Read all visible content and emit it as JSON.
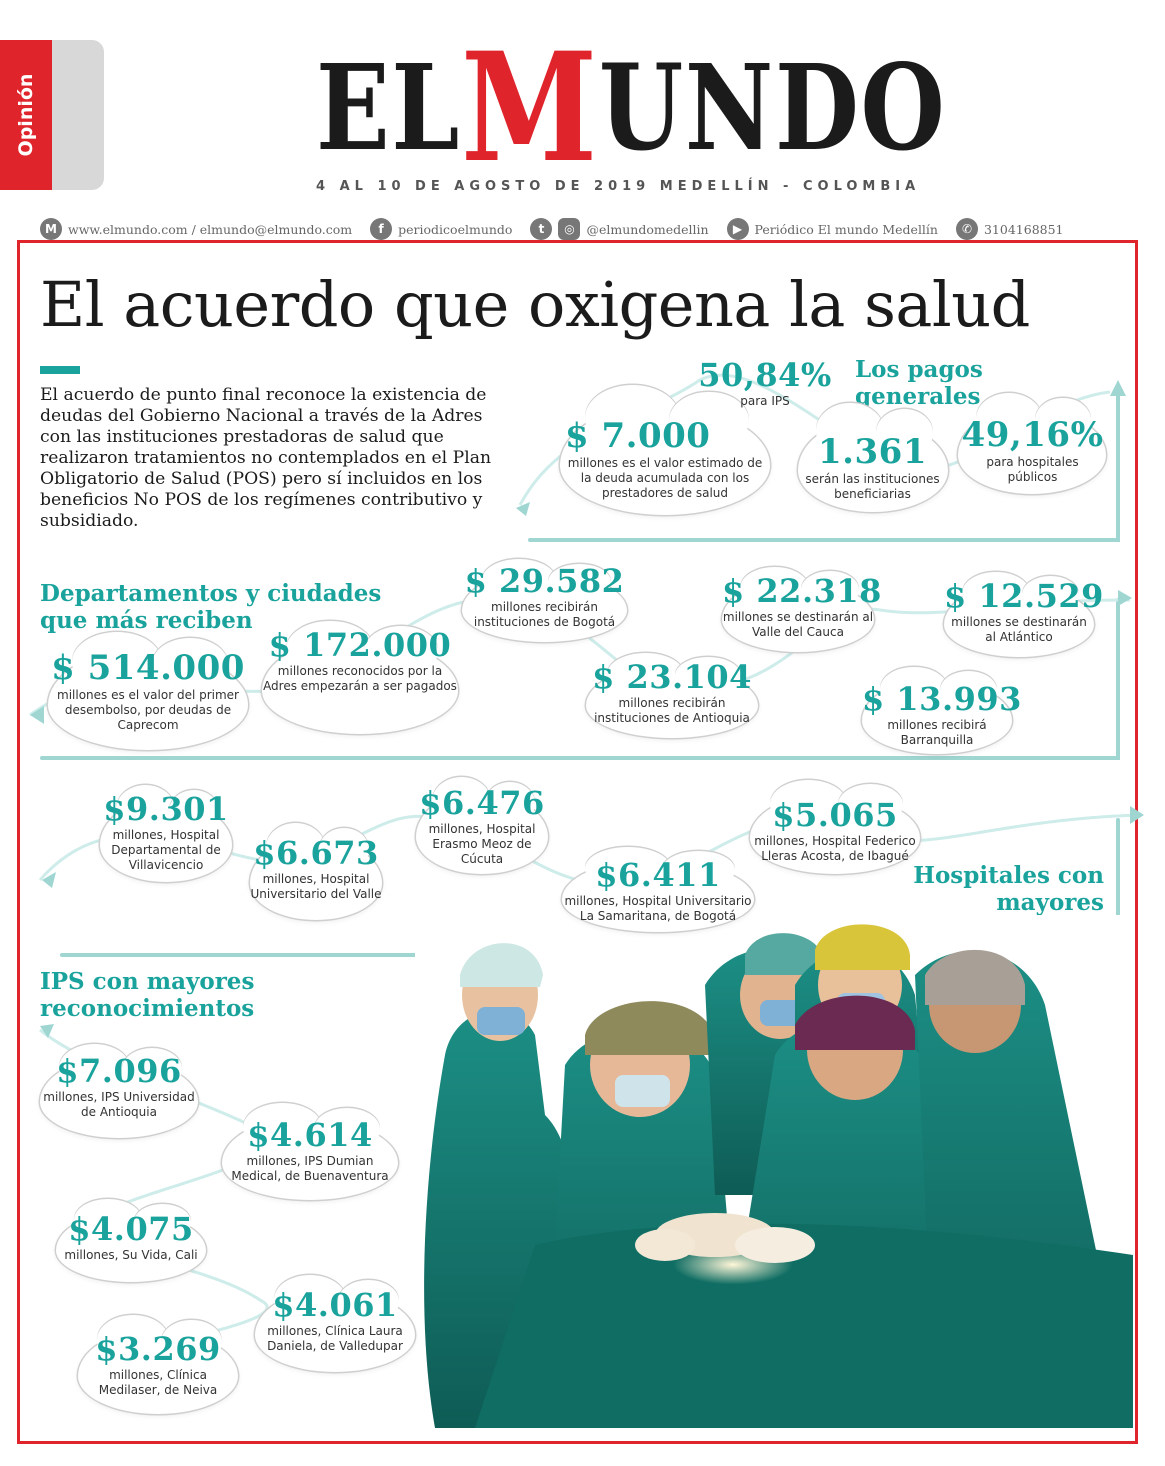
{
  "section_tab": {
    "label": "Opinión"
  },
  "masthead": {
    "part1": "EL ",
    "part2": "M",
    "part3": "UNDO"
  },
  "dateline": "4 AL 10 DE AGOSTO DE 2019 MEDELLÍN - COLOMBIA",
  "contact": {
    "web": "www.elmundo.com / elmundo@elmundo.com",
    "facebook": "periodicoelmundo",
    "social": "@elmundomedellin",
    "youtube": "Periódico El mundo Medellín",
    "whatsapp": "3104168851"
  },
  "icons": {
    "m": "M",
    "fb": "f",
    "tw": "t",
    "ig": "◎",
    "yt": "▶",
    "wa": "✆"
  },
  "headline": "El acuerdo que oxigena la salud",
  "intro": "El acuerdo de punto final reconoce la existencia de deudas del Gobierno Nacional a través de la Adres con las instituciones prestadoras de salud que realizaron tratamientos no contemplados en el Plan Obligatorio de Salud (POS) pero sí incluidos en los beneficios  No POS de los regímenes contributivo y subsidiado.",
  "sections": {
    "pagos": "Los pagos generales",
    "departamentos": "Departamentos y ciudades que más reciben",
    "hospitales": "Hospitales con mayores reconocimientos",
    "ips": "IPS con mayores reconocimientos"
  },
  "pagos": [
    {
      "value": "50,84%",
      "desc": "para IPS"
    },
    {
      "value": "$ 7.000",
      "desc": "millones es el valor estimado de la deuda acumulada con los prestadores de salud"
    },
    {
      "value": "1.361",
      "desc": "serán las instituciones beneficiarias"
    },
    {
      "value": "49,16%",
      "desc": "para hospitales públicos"
    }
  ],
  "departamentos": [
    {
      "value": "$ 514.000",
      "desc": "millones es el valor del primer desembolso, por deudas de Caprecom"
    },
    {
      "value": "$ 172.000",
      "desc": "millones reconocidos por la Adres empezarán a ser pagados"
    },
    {
      "value": "$ 29.582",
      "desc": "millones recibirán instituciones de Bogotá"
    },
    {
      "value": "$ 23.104",
      "desc": "millones recibirán instituciones de Antioquia"
    },
    {
      "value": "$ 22.318",
      "desc": "millones se destinarán al Valle del Cauca"
    },
    {
      "value": "$ 12.529",
      "desc": "millones se destinarán al Atlántico"
    },
    {
      "value": "$ 13.993",
      "desc": "millones recibirá Barranquilla"
    }
  ],
  "hospitales": [
    {
      "value": "$9.301",
      "desc": "millones, Hospital Departamental de Villavicencio"
    },
    {
      "value": "$6.673",
      "desc": "millones, Hospital Universitario del Valle"
    },
    {
      "value": "$6.476",
      "desc": "millones, Hospital Erasmo Meoz de Cúcuta"
    },
    {
      "value": "$6.411",
      "desc": "millones, Hospital Universitario La Samaritana, de Bogotá"
    },
    {
      "value": "$5.065",
      "desc": "millones, Hospital Federico Lleras Acosta, de Ibagué"
    }
  ],
  "ips": [
    {
      "value": "$7.096",
      "desc": "millones, IPS Universidad de Antioquia"
    },
    {
      "value": "$4.614",
      "desc": "millones, IPS Dumian Medical, de Buenaventura"
    },
    {
      "value": "$4.075",
      "desc": "millones, Su Vida, Cali"
    },
    {
      "value": "$4.061",
      "desc": "millones, Clínica Laura Daniela, de Valledupar"
    },
    {
      "value": "$3.269",
      "desc": "millones, Clínica Medilaser, de Neiva"
    }
  ],
  "colors": {
    "accent": "#1aa39c",
    "brand_red": "#e0242c"
  }
}
